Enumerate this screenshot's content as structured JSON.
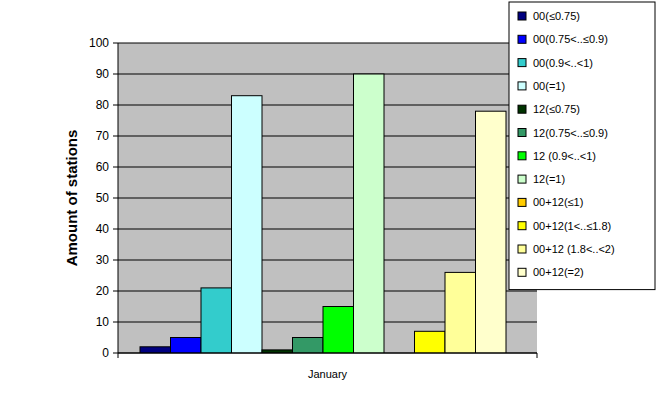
{
  "chart_data": {
    "type": "bar",
    "categories": [
      "January"
    ],
    "y_label": "Amount of stations",
    "series": [
      {
        "name": "00(≤0.75)",
        "color": "#000080",
        "values": [
          2
        ]
      },
      {
        "name": "00(0.75<..≤0.9)",
        "color": "#0000ff",
        "values": [
          5
        ]
      },
      {
        "name": "00(0.9<..<1)",
        "color": "#33cccc",
        "values": [
          21
        ]
      },
      {
        "name": "00(=1)",
        "color": "#ccffff",
        "values": [
          83
        ]
      },
      {
        "name": "12(≤0.75)",
        "color": "#003300",
        "values": [
          1
        ]
      },
      {
        "name": "12(0.75<..≤0.9)",
        "color": "#339966",
        "values": [
          5
        ]
      },
      {
        "name": "12 (0.9<..<1)",
        "color": "#00ff00",
        "values": [
          15
        ]
      },
      {
        "name": "12(=1)",
        "color": "#ccffcc",
        "values": [
          90
        ]
      },
      {
        "name": "00+12(≤1)",
        "color": "#ffcc00",
        "values": [
          0
        ]
      },
      {
        "name": "00+12(1<..≤1.8)",
        "color": "#ffff00",
        "values": [
          7
        ]
      },
      {
        "name": "00+12 (1.8<..<2)",
        "color": "#ffff99",
        "values": [
          26
        ]
      },
      {
        "name": "00+12(=2)",
        "color": "#ffffcc",
        "values": [
          78
        ]
      }
    ],
    "ylim": [
      0,
      100
    ],
    "yticks": [
      0,
      10,
      20,
      30,
      40,
      50,
      60,
      70,
      80,
      90,
      100
    ],
    "grid": true,
    "legend": "top-right"
  }
}
